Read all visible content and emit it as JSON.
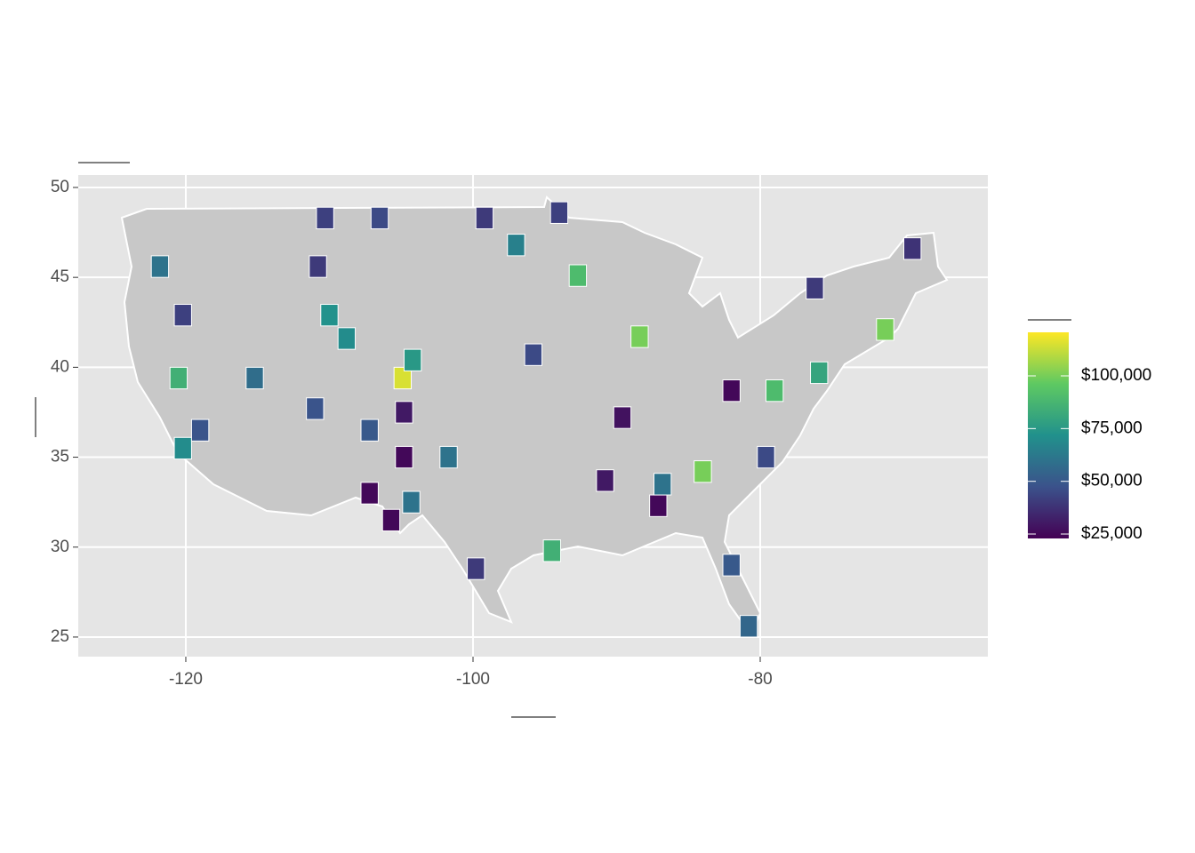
{
  "chart_data": {
    "type": "map",
    "xlim": [
      -127.49,
      -64.15
    ],
    "xticks": [
      -120,
      -100,
      -80
    ],
    "ylim": [
      23.91,
      50.69
    ],
    "yticks": [
      25,
      30,
      35,
      40,
      45,
      50
    ],
    "grid": true,
    "clim": [
      22900,
      120650
    ],
    "colorscale": [
      "#440154",
      "#3b528b",
      "#21918c",
      "#5ec962",
      "#fde725"
    ],
    "legend_ticks": [
      {
        "value": 25000,
        "label": "$25,000"
      },
      {
        "value": 50000,
        "label": "$50,000"
      },
      {
        "value": 75000,
        "label": "$75,000"
      },
      {
        "value": 100000,
        "label": "$100,000"
      }
    ],
    "legend_position": "right",
    "lon": [
      -104.9,
      -108.8,
      -110,
      -120.2,
      -115.2,
      -120.2,
      -119,
      -111,
      -104.8,
      -104.8,
      -107.2,
      -105.7,
      -104.3,
      -107.2,
      -104.2,
      -110.8,
      -106.5,
      -110.3,
      -99.2,
      -97,
      -94,
      -69.4,
      -76.2,
      -75.9,
      -79,
      -79.6,
      -87.1,
      -86.8,
      -84,
      -82,
      -80.8,
      -88.4,
      -71.3,
      -92.7,
      -82,
      -90.8,
      -94.5,
      -101.7,
      -99.8,
      -89.6,
      -95.8,
      -120.5,
      -121.8
    ],
    "lat": [
      39.4,
      41.6,
      42.9,
      42.9,
      39.4,
      35.5,
      36.5,
      37.7,
      37.5,
      35,
      33,
      31.5,
      32.5,
      36.5,
      40.4,
      45.6,
      48.3,
      48.3,
      48.3,
      46.8,
      48.6,
      46.6,
      44.4,
      39.7,
      38.7,
      35,
      32.3,
      33.5,
      34.2,
      29,
      25.6,
      41.7,
      42.1,
      45.1,
      38.7,
      33.7,
      29.8,
      35,
      28.8,
      37.2,
      40.7,
      39.4,
      45.6
    ],
    "values": [
      115000,
      70000,
      72000,
      42000,
      58000,
      70000,
      48000,
      48000,
      30000,
      25000,
      25000,
      25000,
      60000,
      50000,
      75000,
      40000,
      45000,
      42000,
      40000,
      65000,
      42000,
      38000,
      40000,
      80000,
      90000,
      45000,
      25000,
      60000,
      100000,
      50000,
      55000,
      100000,
      100000,
      90000,
      25000,
      30000,
      85000,
      60000,
      40000,
      28000,
      45000,
      85000,
      60000
    ]
  }
}
